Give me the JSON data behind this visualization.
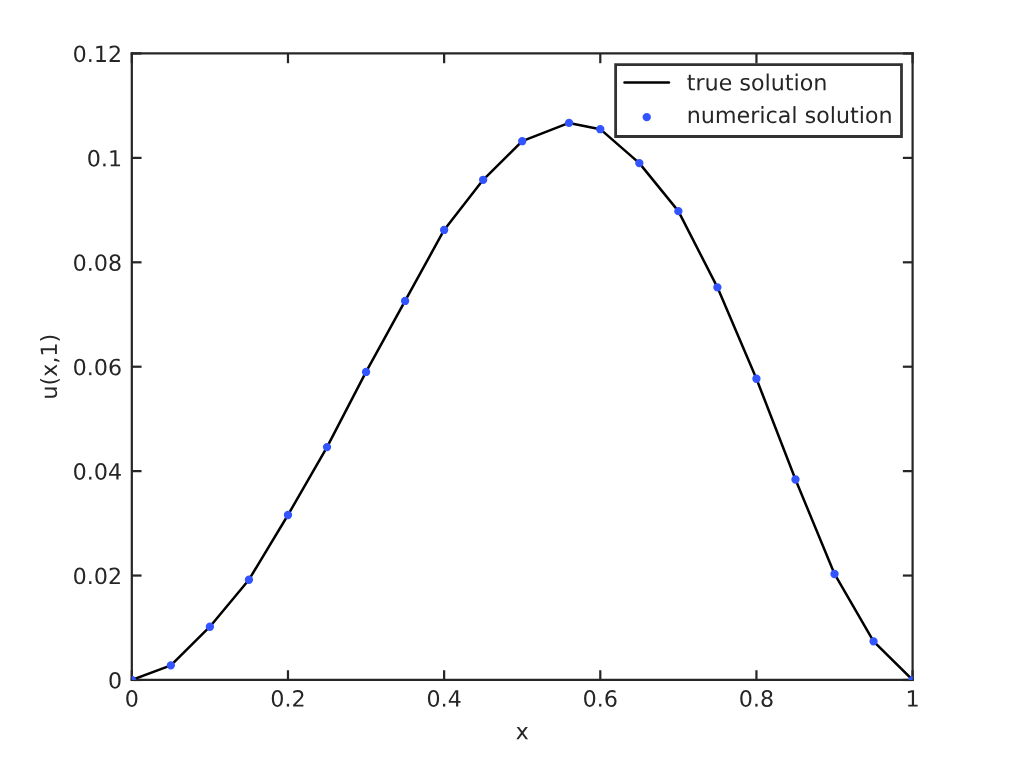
{
  "chart_data": {
    "type": "line",
    "xlabel": "x",
    "ylabel": "u(x,1)",
    "xlim": [
      0,
      1
    ],
    "ylim": [
      0,
      0.12
    ],
    "xticks": [
      0,
      0.2,
      0.4,
      0.6,
      0.8,
      1
    ],
    "yticks": [
      0,
      0.02,
      0.04,
      0.06,
      0.08,
      0.1,
      0.12
    ],
    "grid": false,
    "legend": "top right",
    "x": [
      0,
      0.05,
      0.1,
      0.15,
      0.2,
      0.25,
      0.3,
      0.35,
      0.4,
      0.45,
      0.5,
      0.56,
      0.6,
      0.65,
      0.7,
      0.75,
      0.8,
      0.85,
      0.9,
      0.95,
      1
    ],
    "series": [
      {
        "name": "true solution",
        "color": "#000000",
        "marker": "none",
        "values": [
          0,
          0.0028,
          0.0102,
          0.0192,
          0.0316,
          0.0446,
          0.059,
          0.0726,
          0.0862,
          0.0958,
          0.1032,
          0.1067,
          0.1055,
          0.099,
          0.0898,
          0.0752,
          0.0577,
          0.0384,
          0.0203,
          0.0074,
          0
        ]
      },
      {
        "name": "numerical solution",
        "color": "#3355ff",
        "type": "scatter",
        "marker": "circle",
        "values": [
          0,
          0.0028,
          0.0102,
          0.0192,
          0.0316,
          0.0446,
          0.059,
          0.0726,
          0.0862,
          0.0958,
          0.1032,
          0.1067,
          0.1055,
          0.099,
          0.0898,
          0.0752,
          0.0577,
          0.0384,
          0.0203,
          0.0074,
          0
        ]
      }
    ]
  }
}
